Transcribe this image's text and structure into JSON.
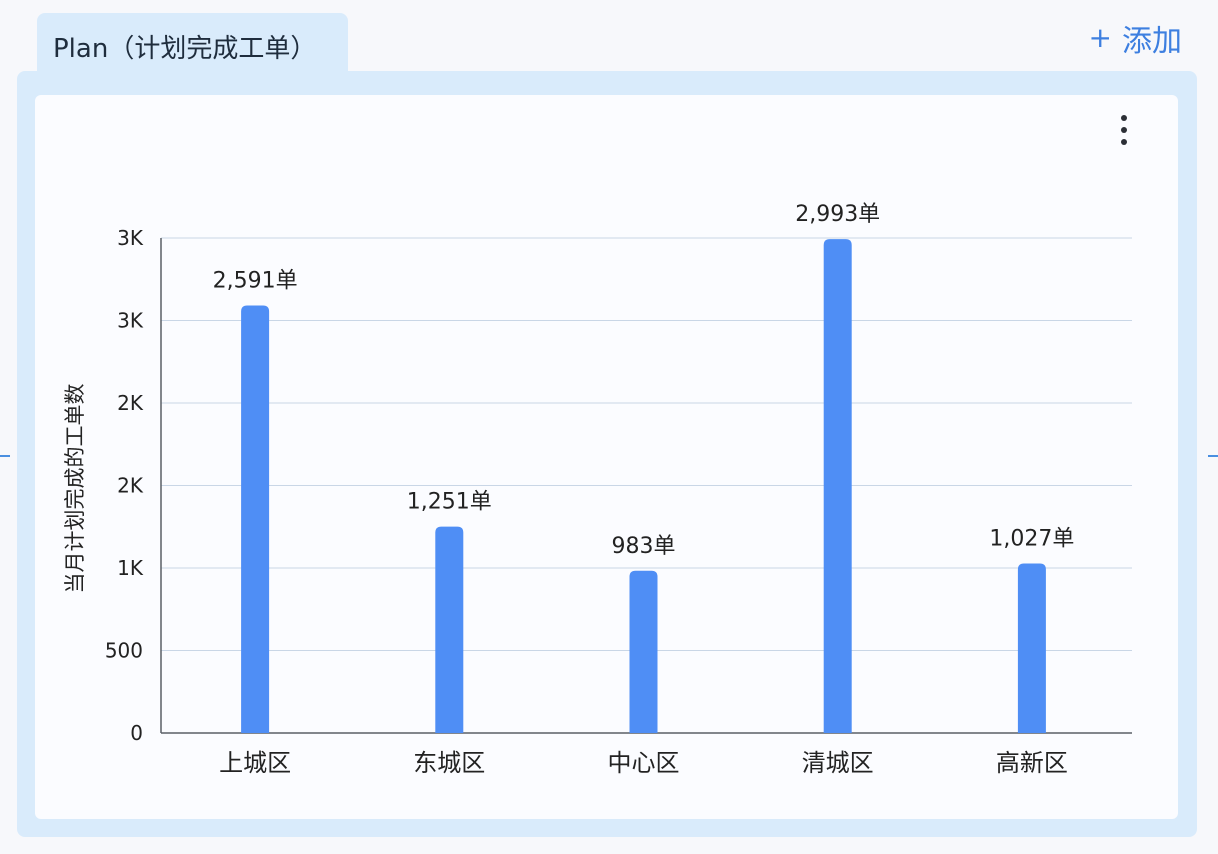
{
  "tab": {
    "label": "Plan（计划完成工单）"
  },
  "add_button": {
    "icon": "plus-icon",
    "label": "添加"
  },
  "menu": {
    "icon": "more-vertical-icon"
  },
  "colors": {
    "bar": "#4f8ef5",
    "grid": "#c9d6e6",
    "panel": "#d9ebfb",
    "accent": "#3d7fe0"
  },
  "chart_data": {
    "type": "bar",
    "categories": [
      "上城区",
      "东城区",
      "中心区",
      "清城区",
      "高新区"
    ],
    "values": [
      2591,
      1251,
      983,
      2993,
      1027
    ],
    "data_labels": [
      "2,591单",
      "1,251单",
      "983单",
      "2,993单",
      "1,027单"
    ],
    "ylabel": "当月计划完成的工单数",
    "yticks": [
      {
        "value": 0,
        "label": "0"
      },
      {
        "value": 500,
        "label": "500"
      },
      {
        "value": 1000,
        "label": "1K"
      },
      {
        "value": 1500,
        "label": "2K"
      },
      {
        "value": 2000,
        "label": "2K"
      },
      {
        "value": 2500,
        "label": "3K"
      },
      {
        "value": 3000,
        "label": "3K"
      }
    ],
    "ylim": [
      0,
      3000
    ],
    "grid": true
  }
}
